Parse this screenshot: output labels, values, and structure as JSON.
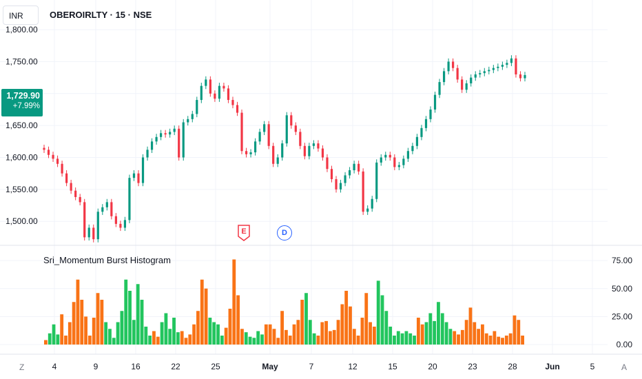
{
  "header": {
    "currency": "INR",
    "symbol_title": "OBEROIRLTY · 15 · NSE"
  },
  "price_tag": {
    "price": "1,729.90",
    "change": "+7.99%",
    "color": "#089981"
  },
  "indicator": {
    "title": "Sri_Momentum Burst Histogram"
  },
  "markers": {
    "earnings": "E",
    "dividend": "D"
  },
  "corners": {
    "left": "Z",
    "right": "A"
  },
  "colors": {
    "up": "#089981",
    "down": "#f23645",
    "hist_green": "#22c55e",
    "hist_orange": "#f97316",
    "grid": "#f0f3fa",
    "text": "#131722"
  },
  "chart_data": [
    {
      "type": "line",
      "series": [
        {
          "values": [
            1612,
            1604,
            1598,
            1590,
            1575,
            1560,
            1548,
            1538,
            1530,
            1475,
            1490,
            1472,
            1515,
            1522,
            1530,
            1508,
            1496,
            1490,
            1502,
            1568,
            1575,
            1560,
            1600,
            1612,
            1625,
            1632,
            1638,
            1636,
            1640,
            1645,
            1600,
            1655,
            1660,
            1668,
            1690,
            1712,
            1722,
            1700,
            1692,
            1712,
            1708,
            1690,
            1682,
            1670,
            1610,
            1605,
            1608,
            1625,
            1640,
            1652,
            1618,
            1590,
            1600,
            1622,
            1666,
            1650,
            1640,
            1618,
            1602,
            1618,
            1622,
            1614,
            1600,
            1582,
            1566,
            1550,
            1560,
            1572,
            1580,
            1590,
            1578,
            1515,
            1520,
            1535,
            1592,
            1600,
            1604,
            1600,
            1585,
            1588,
            1598,
            1610,
            1618,
            1632,
            1646,
            1660,
            1675,
            1698,
            1718,
            1735,
            1750,
            1740,
            1722,
            1706,
            1716,
            1725,
            1730,
            1732,
            1735,
            1737,
            1740,
            1742,
            1745,
            1748,
            1755,
            1730,
            1724,
            1729
          ]
        }
      ],
      "x_ticks": [
        "4",
        "9",
        "16",
        "22",
        "25",
        "May",
        "7",
        "12",
        "15",
        "20",
        "23",
        "28",
        "Jun",
        "5"
      ],
      "y_ticks": [
        "1,500.00",
        "1,550.00",
        "1,600.00",
        "1,650.00",
        "1,700.00",
        "1,750.00",
        "1,800.00"
      ],
      "ylim": [
        1470,
        1840
      ]
    },
    {
      "type": "bar",
      "title": "Sri_Momentum Burst Histogram",
      "values": [
        4,
        10,
        18,
        9,
        27,
        8,
        20,
        38,
        58,
        40,
        25,
        8,
        24,
        46,
        40,
        20,
        14,
        6,
        20,
        30,
        58,
        48,
        22,
        54,
        40,
        16,
        8,
        12,
        7,
        20,
        28,
        14,
        24,
        11,
        12,
        6,
        9,
        18,
        30,
        58,
        50,
        24,
        20,
        18,
        8,
        15,
        32,
        76,
        44,
        14,
        11,
        7,
        6,
        12,
        9,
        18,
        18,
        14,
        6,
        30,
        13,
        8,
        18,
        22,
        40,
        46,
        22,
        10,
        8,
        20,
        21,
        12,
        13,
        22,
        36,
        48,
        34,
        14,
        8,
        24,
        46,
        20,
        16,
        57,
        44,
        30,
        16,
        8,
        12,
        10,
        12,
        10,
        8,
        24,
        18,
        20,
        28,
        21,
        38,
        28,
        20,
        14,
        12,
        9,
        13,
        22,
        33,
        20,
        14,
        18,
        10,
        8,
        12,
        7,
        6,
        8,
        10,
        26,
        22,
        8
      ],
      "colors": [
        "o",
        "g",
        "g",
        "g",
        "o",
        "o",
        "o",
        "o",
        "o",
        "o",
        "o",
        "o",
        "o",
        "o",
        "o",
        "g",
        "g",
        "g",
        "g",
        "g",
        "g",
        "g",
        "g",
        "g",
        "g",
        "g",
        "g",
        "o",
        "o",
        "g",
        "g",
        "g",
        "g",
        "g",
        "o",
        "o",
        "o",
        "o",
        "o",
        "o",
        "o",
        "g",
        "g",
        "g",
        "g",
        "o",
        "o",
        "o",
        "o",
        "o",
        "g",
        "g",
        "g",
        "g",
        "g",
        "o",
        "o",
        "o",
        "o",
        "o",
        "o",
        "o",
        "o",
        "o",
        "o",
        "g",
        "g",
        "g",
        "o",
        "o",
        "o",
        "o",
        "o",
        "o",
        "o",
        "o",
        "o",
        "o",
        "o",
        "o",
        "o",
        "o",
        "o",
        "g",
        "g",
        "g",
        "g",
        "g",
        "g",
        "g",
        "g",
        "g",
        "g",
        "o",
        "o",
        "g",
        "g",
        "g",
        "g",
        "g",
        "g",
        "g",
        "o",
        "o",
        "o",
        "o",
        "o",
        "o",
        "o",
        "o",
        "o",
        "o",
        "o",
        "o",
        "o",
        "o",
        "o",
        "o",
        "o",
        "o"
      ],
      "y_ticks": [
        "0.00",
        "25.00",
        "50.00",
        "75.00"
      ],
      "ylim": [
        0,
        80
      ]
    }
  ]
}
